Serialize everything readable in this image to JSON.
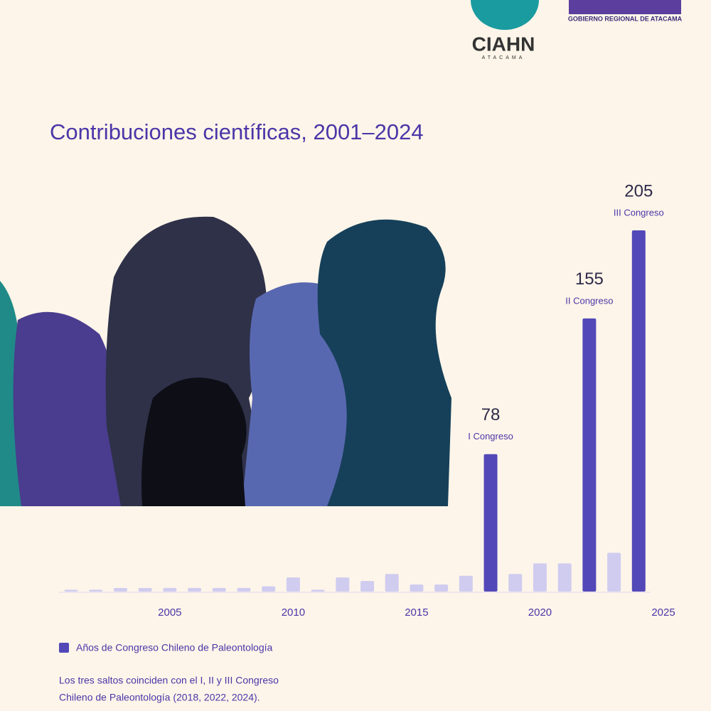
{
  "header": {
    "logo_left": "CIAHN",
    "logo_left_sub": "ATACAMA",
    "logo_right": "GOBIERNO REGIONAL DE ATACAMA"
  },
  "chart_data": {
    "type": "bar",
    "title": "Contribuciones científicas, 2001–2024",
    "x": [
      2001,
      2002,
      2003,
      2004,
      2005,
      2006,
      2007,
      2008,
      2009,
      2010,
      2011,
      2012,
      2013,
      2014,
      2015,
      2016,
      2017,
      2018,
      2019,
      2020,
      2021,
      2022,
      2023,
      2024
    ],
    "values": [
      1,
      1,
      2,
      2,
      2,
      2,
      2,
      2,
      3,
      8,
      1,
      8,
      6,
      10,
      4,
      4,
      9,
      78,
      10,
      16,
      16,
      155,
      22,
      205
    ],
    "colors": [
      "#d0ccf0",
      "#d0ccf0",
      "#d0ccf0",
      "#d0ccf0",
      "#d0ccf0",
      "#d0ccf0",
      "#d0ccf0",
      "#d0ccf0",
      "#d0ccf0",
      "#d0ccf0",
      "#d0ccf0",
      "#d0ccf0",
      "#d0ccf0",
      "#d0ccf0",
      "#d0ccf0",
      "#d0ccf0",
      "#d0ccf0",
      "#5348b8",
      "#d0ccf0",
      "#d0ccf0",
      "#d0ccf0",
      "#5348b8",
      "#d0ccf0",
      "#5348b8"
    ],
    "xlim": [
      2000.5,
      2025
    ],
    "xticks": [
      2005,
      2010,
      2015,
      2020,
      2025
    ],
    "ylim": [
      0,
      205
    ],
    "annotations": [
      {
        "x": 2018,
        "text": "I Congreso"
      },
      {
        "x": 2022,
        "text": "II Congreso"
      },
      {
        "x": 2024,
        "text": "III Congreso"
      }
    ],
    "legend": {
      "label": "Años de Congreso Chileno de Paleontología",
      "color": "#5348b8"
    },
    "note": [
      "Los tres saltos coinciden con el I, II y III Congreso",
      "Chileno de Paleontología (2018, 2022, 2024)."
    ]
  }
}
